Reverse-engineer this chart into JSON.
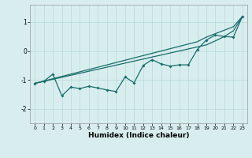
{
  "xlabel": "Humidex (Indice chaleur)",
  "background_color": "#d8eeee",
  "grid_color": "#b8d8d8",
  "line_color": "#1a6b6b",
  "xlim": [
    -0.5,
    23.5
  ],
  "ylim": [
    -2.5,
    1.6
  ],
  "yticks": [
    -2,
    -1,
    0,
    1
  ],
  "xticks": [
    0,
    1,
    2,
    3,
    4,
    5,
    6,
    7,
    8,
    9,
    10,
    11,
    12,
    13,
    14,
    15,
    16,
    17,
    18,
    19,
    20,
    21,
    22,
    23
  ],
  "line1_y": [
    -1.12,
    -1.05,
    -0.98,
    -0.91,
    -0.84,
    -0.77,
    -0.7,
    -0.63,
    -0.56,
    -0.49,
    -0.42,
    -0.35,
    -0.28,
    -0.21,
    -0.14,
    -0.07,
    0.0,
    0.07,
    0.14,
    0.21,
    0.35,
    0.5,
    0.7,
    1.2
  ],
  "line2_y": [
    -1.12,
    -1.04,
    -0.96,
    -0.88,
    -0.8,
    -0.72,
    -0.64,
    -0.56,
    -0.48,
    -0.4,
    -0.32,
    -0.24,
    -0.16,
    -0.08,
    0.0,
    0.08,
    0.16,
    0.24,
    0.32,
    0.48,
    0.6,
    0.72,
    0.84,
    1.2
  ],
  "scatter_y": [
    -1.12,
    -1.05,
    -0.8,
    -1.55,
    -1.25,
    -1.3,
    -1.22,
    -1.28,
    -1.35,
    -1.4,
    -0.9,
    -1.1,
    -0.5,
    -0.3,
    -0.45,
    -0.52,
    -0.48,
    -0.48,
    0.05,
    0.38,
    0.55,
    0.5,
    0.48,
    1.2
  ]
}
